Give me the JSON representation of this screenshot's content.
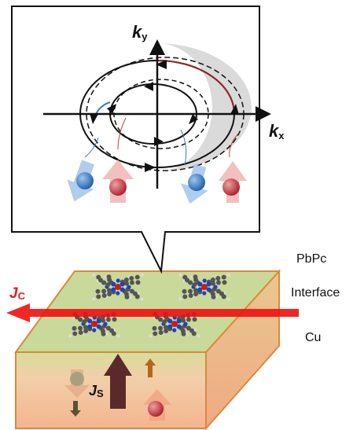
{
  "axes": {
    "ky": {
      "symbol": "k",
      "subscript": "y"
    },
    "kx": {
      "symbol": "k",
      "subscript": "x"
    }
  },
  "layers": [
    "PbPc",
    "Interface",
    "Cu"
  ],
  "currents": {
    "charge": {
      "symbol": "J",
      "subscript": "C"
    },
    "spin": {
      "symbol": "J",
      "subscript": "S"
    }
  }
}
